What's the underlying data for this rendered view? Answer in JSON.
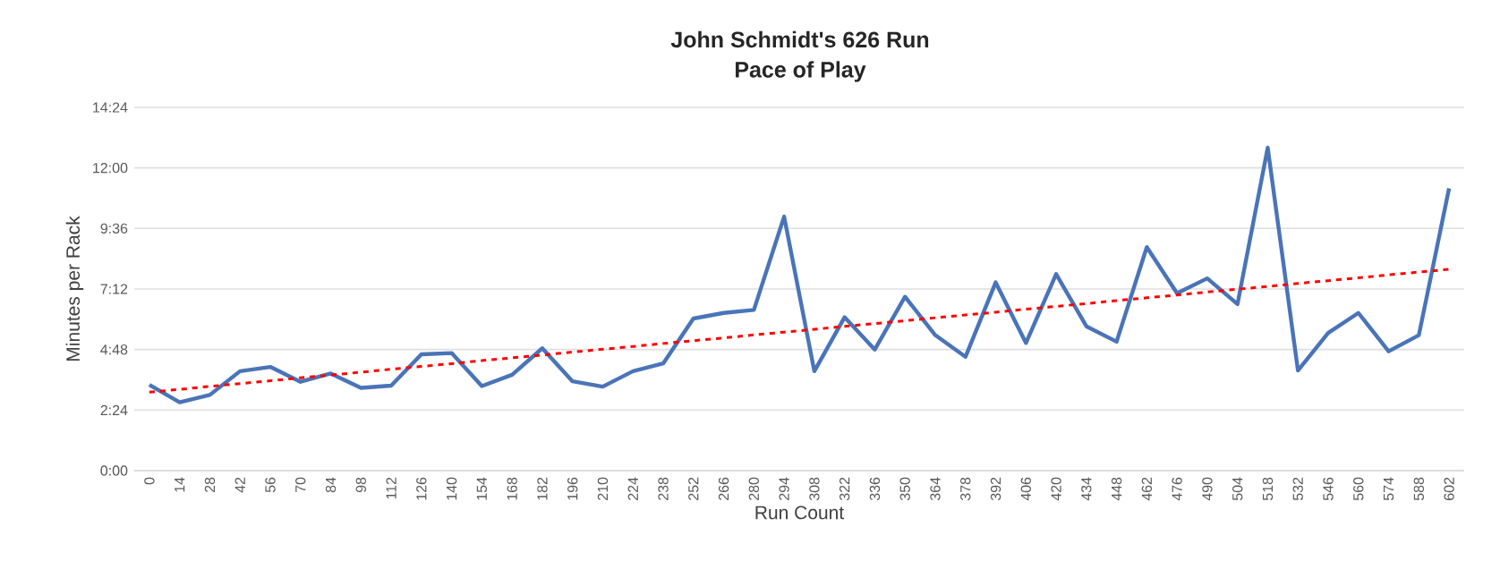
{
  "chart_data": {
    "type": "line",
    "title": "John Schmidt's 626 Run",
    "subtitle": "Pace of Play",
    "xlabel": "Run Count",
    "ylabel": "Minutes per Rack",
    "categories": [
      "0",
      "14",
      "28",
      "42",
      "56",
      "70",
      "84",
      "98",
      "112",
      "126",
      "140",
      "154",
      "168",
      "182",
      "196",
      "210",
      "224",
      "238",
      "252",
      "266",
      "280",
      "294",
      "308",
      "322",
      "336",
      "350",
      "364",
      "378",
      "392",
      "406",
      "420",
      "434",
      "448",
      "462",
      "476",
      "490",
      "504",
      "518",
      "532",
      "546",
      "560",
      "574",
      "588",
      "602"
    ],
    "series": [
      {
        "color": "#4a74b8",
        "line_style": "solid",
        "values": [
          3.4,
          2.71,
          3.0,
          3.94,
          4.11,
          3.52,
          3.85,
          3.28,
          3.37,
          4.61,
          4.66,
          3.35,
          3.8,
          4.85,
          3.54,
          3.33,
          3.94,
          4.25,
          6.03,
          6.25,
          6.37,
          10.07,
          3.94,
          6.08,
          4.8,
          6.89,
          5.37,
          4.51,
          7.46,
          5.06,
          7.79,
          5.72,
          5.11,
          8.86,
          7.03,
          7.62,
          6.6,
          12.8,
          3.97,
          5.46,
          6.25,
          4.73,
          5.37,
          11.19
        ]
      },
      {
        "color": "#ff0000",
        "line_style": "dashed",
        "values": [
          3.11,
          3.22,
          3.34,
          3.45,
          3.56,
          3.68,
          3.79,
          3.9,
          4.02,
          4.13,
          4.24,
          4.36,
          4.47,
          4.58,
          4.7,
          4.81,
          4.92,
          5.04,
          5.15,
          5.26,
          5.38,
          5.49,
          5.6,
          5.72,
          5.83,
          5.94,
          6.06,
          6.17,
          6.28,
          6.4,
          6.51,
          6.62,
          6.74,
          6.85,
          6.96,
          7.08,
          7.19,
          7.3,
          7.42,
          7.53,
          7.64,
          7.76,
          7.87,
          7.98
        ]
      }
    ],
    "ylim": [
      0,
      14.4
    ],
    "yticks": [
      {
        "value": 0,
        "label": "0:00"
      },
      {
        "value": 2.4,
        "label": "2:24"
      },
      {
        "value": 4.8,
        "label": "4:48"
      },
      {
        "value": 7.2,
        "label": "7:12"
      },
      {
        "value": 9.6,
        "label": "9:36"
      },
      {
        "value": 12,
        "label": "12:00"
      },
      {
        "value": 14.4,
        "label": "14:24"
      }
    ],
    "grid": "y",
    "legend": false,
    "marker": "none"
  }
}
